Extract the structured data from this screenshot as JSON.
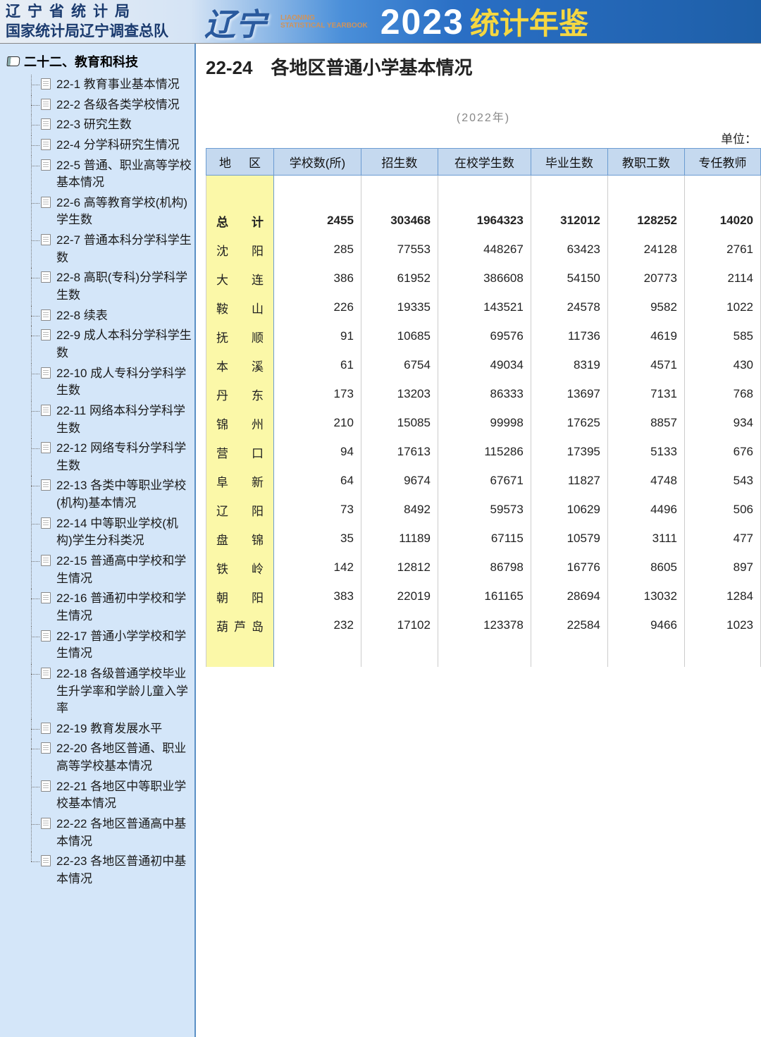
{
  "header": {
    "org_line1": "辽宁省统计局",
    "org_line2": "国家统计局辽宁调查总队",
    "province_stylized": "辽宁",
    "sub_en1": "LIAONING",
    "sub_en2": "STATISTICAL YEARBOOK",
    "year": "2023",
    "title": "统计年鉴"
  },
  "sidebar": {
    "section": "二十二、教育和科技",
    "items": [
      {
        "label": "22-1 教育事业基本情况"
      },
      {
        "label": "22-2 各级各类学校情况"
      },
      {
        "label": "22-3 研究生数"
      },
      {
        "label": "22-4 分学科研究生情况"
      },
      {
        "label": "22-5 普通、职业高等学校基本情况"
      },
      {
        "label": "22-6 高等教育学校(机构)学生数"
      },
      {
        "label": "22-7 普通本科分学科学生数"
      },
      {
        "label": "22-8 高职(专科)分学科学生数"
      },
      {
        "label": "22-8 续表"
      },
      {
        "label": "22-9 成人本科分学科学生数"
      },
      {
        "label": "22-10 成人专科分学科学生数"
      },
      {
        "label": "22-11 网络本科分学科学生数"
      },
      {
        "label": "22-12 网络专科分学科学生数"
      },
      {
        "label": "22-13 各类中等职业学校(机构)基本情况"
      },
      {
        "label": "22-14 中等职业学校(机构)学生分科类况"
      },
      {
        "label": "22-15 普通高中学校和学生情况"
      },
      {
        "label": "22-16 普通初中学校和学生情况"
      },
      {
        "label": "22-17 普通小学学校和学生情况"
      },
      {
        "label": "22-18 各级普通学校毕业生升学率和学龄儿童入学率"
      },
      {
        "label": "22-19 教育发展水平"
      },
      {
        "label": "22-20 各地区普通、职业高等学校基本情况"
      },
      {
        "label": "22-21 各地区中等职业学校基本情况"
      },
      {
        "label": "22-22 各地区普通高中基本情况"
      },
      {
        "label": "22-23 各地区普通初中基本情况"
      }
    ]
  },
  "content": {
    "heading": "22-24　各地区普通小学基本情况",
    "year_label": "(2022年)",
    "unit_label": "单位：",
    "columns": [
      "地　区",
      "学校数(所)",
      "招生数",
      "在校学生数",
      "毕业生数",
      "教职工数",
      "专任教师"
    ],
    "total_label": "总　计",
    "total": [
      "2455",
      "303468",
      "1964323",
      "312012",
      "128252",
      "14020"
    ],
    "rows": [
      {
        "region": "沈　阳",
        "values": [
          "285",
          "77553",
          "448267",
          "63423",
          "24128",
          "2761"
        ]
      },
      {
        "region": "大　连",
        "values": [
          "386",
          "61952",
          "386608",
          "54150",
          "20773",
          "2114"
        ]
      },
      {
        "region": "鞍　山",
        "values": [
          "226",
          "19335",
          "143521",
          "24578",
          "9582",
          "1022"
        ]
      },
      {
        "region": "抚　顺",
        "values": [
          "91",
          "10685",
          "69576",
          "11736",
          "4619",
          "585"
        ]
      },
      {
        "region": "本　溪",
        "values": [
          "61",
          "6754",
          "49034",
          "8319",
          "4571",
          "430"
        ]
      },
      {
        "region": "丹　东",
        "values": [
          "173",
          "13203",
          "86333",
          "13697",
          "7131",
          "768"
        ]
      },
      {
        "region": "锦　州",
        "values": [
          "210",
          "15085",
          "99998",
          "17625",
          "8857",
          "934"
        ]
      },
      {
        "region": "营　口",
        "values": [
          "94",
          "17613",
          "115286",
          "17395",
          "5133",
          "676"
        ]
      },
      {
        "region": "阜　新",
        "values": [
          "64",
          "9674",
          "67671",
          "11827",
          "4748",
          "543"
        ]
      },
      {
        "region": "辽　阳",
        "values": [
          "73",
          "8492",
          "59573",
          "10629",
          "4496",
          "506"
        ]
      },
      {
        "region": "盘　锦",
        "values": [
          "35",
          "11189",
          "67115",
          "10579",
          "3111",
          "477"
        ]
      },
      {
        "region": "铁　岭",
        "values": [
          "142",
          "12812",
          "86798",
          "16776",
          "8605",
          "897"
        ]
      },
      {
        "region": "朝　阳",
        "values": [
          "383",
          "22019",
          "161165",
          "28694",
          "13032",
          "1284"
        ]
      },
      {
        "region": "葫芦岛",
        "values": [
          "232",
          "17102",
          "123378",
          "22584",
          "9466",
          "1023"
        ]
      }
    ]
  },
  "colors": {
    "sidebar_bg": "#d4e6f9",
    "sidebar_border": "#5a8fc5",
    "table_header_bg": "#c5d9ef",
    "table_header_border": "#6b9bd1",
    "region_col_bg": "#fbf8a8",
    "header_gradient_start": "#e8eef5",
    "header_gradient_end": "#1e5fa8",
    "header_year_color": "#ffffff",
    "header_title_color": "#f5d742"
  }
}
